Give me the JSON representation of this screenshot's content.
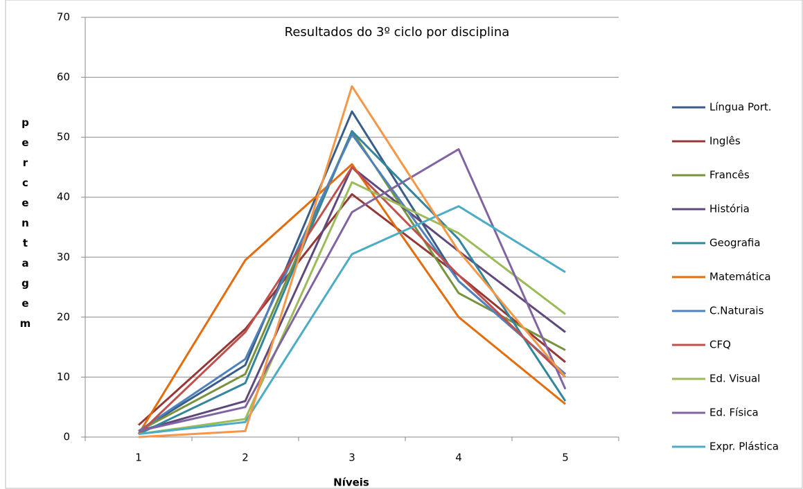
{
  "chart_data": {
    "type": "line",
    "title": "Resultados do 3º ciclo por disciplina",
    "x_label": "Níveis",
    "y_label": "percentagem",
    "categories": [
      1,
      2,
      3,
      4,
      5
    ],
    "ylim": [
      0,
      70
    ],
    "yticks": [
      0,
      10,
      20,
      30,
      40,
      50,
      60,
      70
    ],
    "grid": true,
    "legend": "right",
    "series": [
      {
        "name": "Língua Port.",
        "color": "#385d8a",
        "values": [
          1,
          12,
          54.3,
          26,
          10.5
        ]
      },
      {
        "name": "Inglês",
        "color": "#953735",
        "values": [
          2,
          18,
          40.5,
          27,
          12.5
        ]
      },
      {
        "name": "Francês",
        "color": "#77933c",
        "values": [
          1,
          10.5,
          51,
          24,
          14.5
        ]
      },
      {
        "name": "História",
        "color": "#5f497a",
        "values": [
          1,
          6,
          45,
          31,
          17.5
        ]
      },
      {
        "name": "Geografia",
        "color": "#31859c",
        "values": [
          0.5,
          9,
          51,
          33,
          6
        ]
      },
      {
        "name": "Matemática",
        "color": "#e46c0a",
        "values": [
          0.5,
          29.5,
          45.5,
          20,
          5.5
        ]
      },
      {
        "name": "C.Naturais",
        "color": "#4f81bd",
        "values": [
          1,
          13,
          50.5,
          26,
          10.5
        ]
      },
      {
        "name": "CFQ",
        "color": "#c0504d",
        "values": [
          0.5,
          17.5,
          45,
          27,
          10
        ]
      },
      {
        "name": "Ed. Visual",
        "color": "#9bbb59",
        "values": [
          0.5,
          3,
          42.5,
          34,
          20.5
        ]
      },
      {
        "name": "Ed. Física",
        "color": "#8064a2",
        "values": [
          1,
          5,
          37.5,
          48,
          8
        ]
      },
      {
        "name": "Expr. Plástica",
        "color": "#4bacc6",
        "values": [
          0.5,
          2.5,
          30.5,
          38.5,
          27.5
        ]
      },
      {
        "color": "#f79646",
        "values": [
          0,
          1,
          58.5,
          31,
          10
        ]
      }
    ]
  }
}
